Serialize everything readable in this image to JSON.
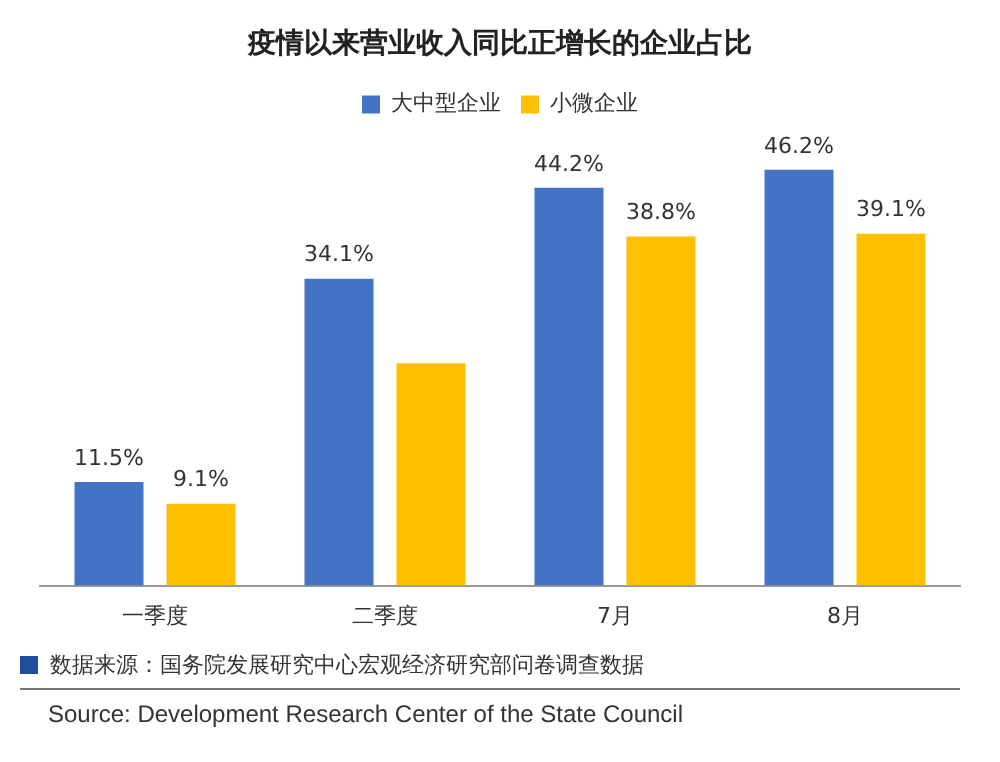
{
  "chart_data": {
    "type": "bar",
    "title": "疫情以来营业收入同比正增长的企业占比",
    "categories": [
      "一季度",
      "二季度",
      "7月",
      "8月"
    ],
    "series": [
      {
        "name": "大中型企业",
        "color": "#4472c4",
        "values": [
          11.5,
          34.1,
          44.2,
          46.2
        ],
        "value_labels": [
          "11.5%",
          "34.1%",
          "44.2%",
          "46.2%"
        ]
      },
      {
        "name": "小微企业",
        "color": "#ffc000",
        "values": [
          9.1,
          24.7,
          38.8,
          39.1
        ],
        "value_labels": [
          "9.1%",
          null,
          "38.8%",
          "39.1%"
        ]
      }
    ],
    "legend": "top",
    "grid": false,
    "annotations": [
      "数据来源：国务院发展研究中心宏观经济研究部问卷调查数据",
      "Source: Development Research Center of the State Council"
    ]
  }
}
